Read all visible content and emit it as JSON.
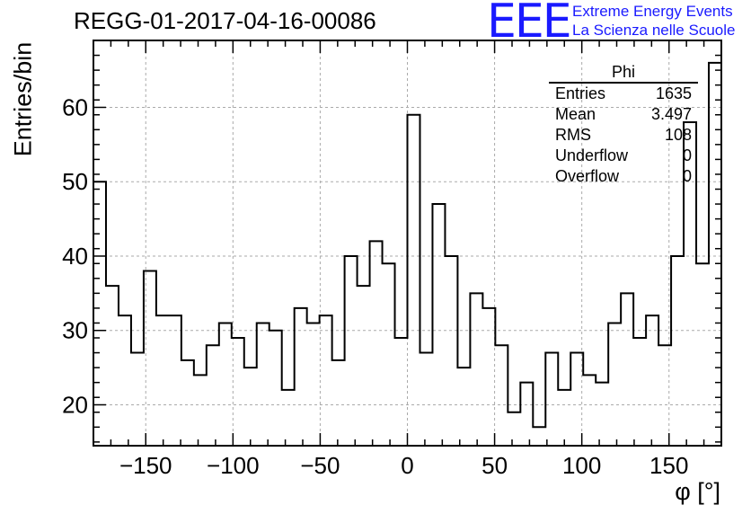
{
  "chart_data": {
    "type": "histogram",
    "title": "REGG-01-2017-04-16-00086",
    "xlabel": "φ [°]",
    "ylabel": "Entries/bin",
    "xlim": [
      -180,
      180
    ],
    "ylim": [
      14.5,
      69
    ],
    "grid": true,
    "x_ticks": [
      -150,
      -100,
      -50,
      0,
      50,
      100,
      150
    ],
    "x_tick_labels": [
      "−150",
      "−100",
      "−50",
      "0",
      "50",
      "100",
      "150"
    ],
    "y_ticks": [
      20,
      30,
      40,
      50,
      60
    ],
    "y_tick_labels": [
      "20",
      "30",
      "40",
      "50",
      "60"
    ],
    "bin_edges_start": -180,
    "bin_width": 7.2,
    "values": [
      50,
      36,
      32,
      27,
      38,
      32,
      32,
      26,
      24,
      28,
      31,
      29,
      25,
      31,
      30,
      22,
      33,
      31,
      32,
      26,
      40,
      36,
      42,
      39,
      29,
      59,
      27,
      47,
      40,
      25,
      35,
      33,
      28,
      19,
      23,
      17,
      27,
      22,
      27,
      24,
      23,
      31,
      35,
      29,
      32,
      28,
      40,
      58,
      39,
      66
    ],
    "stats_box": {
      "name": "Phi",
      "rows": [
        {
          "label": "Entries",
          "value": "1635"
        },
        {
          "label": "Mean",
          "value": "3.497"
        },
        {
          "label": "RMS",
          "value": "108"
        },
        {
          "label": "Underflow",
          "value": "0"
        },
        {
          "label": "Overflow",
          "value": "0"
        }
      ]
    }
  },
  "logo": {
    "mark": "EEE",
    "line1": "Extreme Energy Events",
    "line2": "La Scienza nelle Scuole"
  }
}
